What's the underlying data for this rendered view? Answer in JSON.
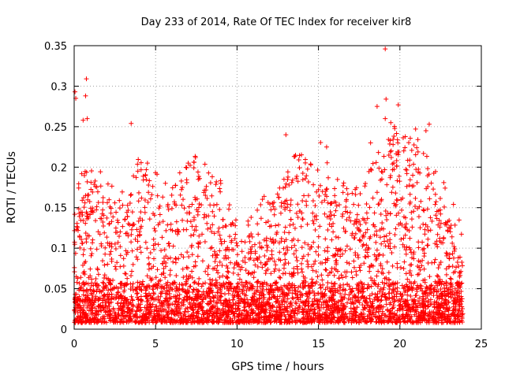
{
  "chart_data": {
    "type": "scatter",
    "title": "Day 233 of 2014, Rate Of TEC Index for receiver kir8",
    "xlabel": "GPS time / hours",
    "ylabel": "ROTI / TECUs",
    "xlim": [
      0,
      25
    ],
    "ylim": [
      0,
      0.35
    ],
    "xticks": [
      0,
      5,
      10,
      15,
      20,
      25
    ],
    "yticks": [
      0,
      0.05,
      0.1,
      0.15,
      0.2,
      0.25,
      0.3,
      0.35
    ],
    "xtick_labels": [
      "0",
      "5",
      "10",
      "15",
      "20",
      "25"
    ],
    "ytick_labels": [
      "0",
      "0.05",
      "0.1",
      "0.15",
      "0.2",
      "0.25",
      "0.3",
      "0.35"
    ],
    "grid": true,
    "marker": "+",
    "color": "#ff0000",
    "series": [
      {
        "name": "ROTI",
        "envelope": {
          "hours": [
            0,
            0.5,
            1,
            1.5,
            2,
            2.5,
            3,
            3.5,
            4,
            4.5,
            5,
            5.5,
            6,
            6.5,
            7,
            7.5,
            8,
            8.5,
            9,
            9.5,
            10,
            10.5,
            11,
            11.5,
            12,
            12.5,
            13,
            13.5,
            14,
            14.5,
            15,
            15.5,
            16,
            16.5,
            17,
            17.5,
            18,
            18.5,
            19,
            19.5,
            20,
            20.5,
            21,
            21.5,
            22,
            22.5,
            23,
            23.5,
            23.9
          ],
          "typical_max": [
            0.12,
            0.16,
            0.15,
            0.16,
            0.14,
            0.13,
            0.15,
            0.15,
            0.17,
            0.16,
            0.15,
            0.14,
            0.13,
            0.15,
            0.16,
            0.17,
            0.16,
            0.15,
            0.14,
            0.12,
            0.09,
            0.09,
            0.1,
            0.12,
            0.12,
            0.13,
            0.15,
            0.17,
            0.18,
            0.17,
            0.19,
            0.18,
            0.17,
            0.15,
            0.14,
            0.13,
            0.16,
            0.17,
            0.2,
            0.22,
            0.2,
            0.19,
            0.21,
            0.18,
            0.17,
            0.15,
            0.13,
            0.1,
            0.08
          ]
        },
        "notable_points": [
          {
            "x": 0.05,
            "y": 0.293
          },
          {
            "x": 0.1,
            "y": 0.285
          },
          {
            "x": 0.75,
            "y": 0.309
          },
          {
            "x": 0.7,
            "y": 0.288
          },
          {
            "x": 0.55,
            "y": 0.258
          },
          {
            "x": 0.8,
            "y": 0.26
          },
          {
            "x": 3.5,
            "y": 0.254
          },
          {
            "x": 13.0,
            "y": 0.24
          },
          {
            "x": 18.6,
            "y": 0.275
          },
          {
            "x": 19.1,
            "y": 0.346
          },
          {
            "x": 19.15,
            "y": 0.284
          },
          {
            "x": 19.1,
            "y": 0.26
          },
          {
            "x": 19.9,
            "y": 0.277
          },
          {
            "x": 21.8,
            "y": 0.253
          },
          {
            "x": 21.6,
            "y": 0.245
          },
          {
            "x": 4.5,
            "y": 0.205
          },
          {
            "x": 7.0,
            "y": 0.205
          },
          {
            "x": 15.5,
            "y": 0.225
          },
          {
            "x": 18.2,
            "y": 0.23
          },
          {
            "x": 9.0,
            "y": 0.18
          }
        ]
      }
    ]
  }
}
